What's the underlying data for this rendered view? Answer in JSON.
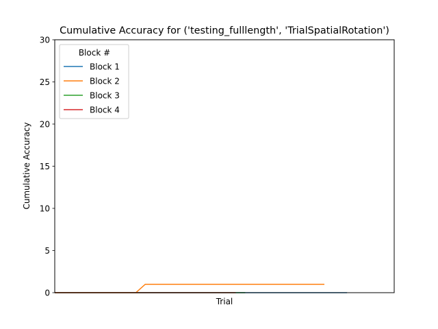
{
  "chart_data": {
    "type": "line",
    "title": "Cumulative Accuracy for ('testing_fulllength', 'TrialSpatialRotation')",
    "xlabel": "Trial",
    "ylabel": "Cumulative Accuracy",
    "xlim": [
      0,
      36
    ],
    "ylim": [
      0,
      30
    ],
    "yticks": [
      0,
      5,
      10,
      15,
      20,
      25,
      30
    ],
    "grid": false,
    "legend": {
      "title": "Block #",
      "placement": "top-left"
    },
    "series": [
      {
        "name": "Block 1",
        "color": "#1f77b4",
        "x": [
          0,
          31
        ],
        "y": [
          0,
          0
        ]
      },
      {
        "name": "Block 2",
        "color": "#ff7f0e",
        "x": [
          0,
          8.6,
          9.6,
          10,
          28.6
        ],
        "y": [
          0,
          0,
          1,
          1,
          1
        ]
      },
      {
        "name": "Block 3",
        "color": "#2ca02c",
        "x": [
          0,
          20.2
        ],
        "y": [
          0,
          0
        ]
      },
      {
        "name": "Block 4",
        "color": "#d62728",
        "x": [
          0,
          19.2
        ],
        "y": [
          0,
          0
        ]
      }
    ]
  }
}
